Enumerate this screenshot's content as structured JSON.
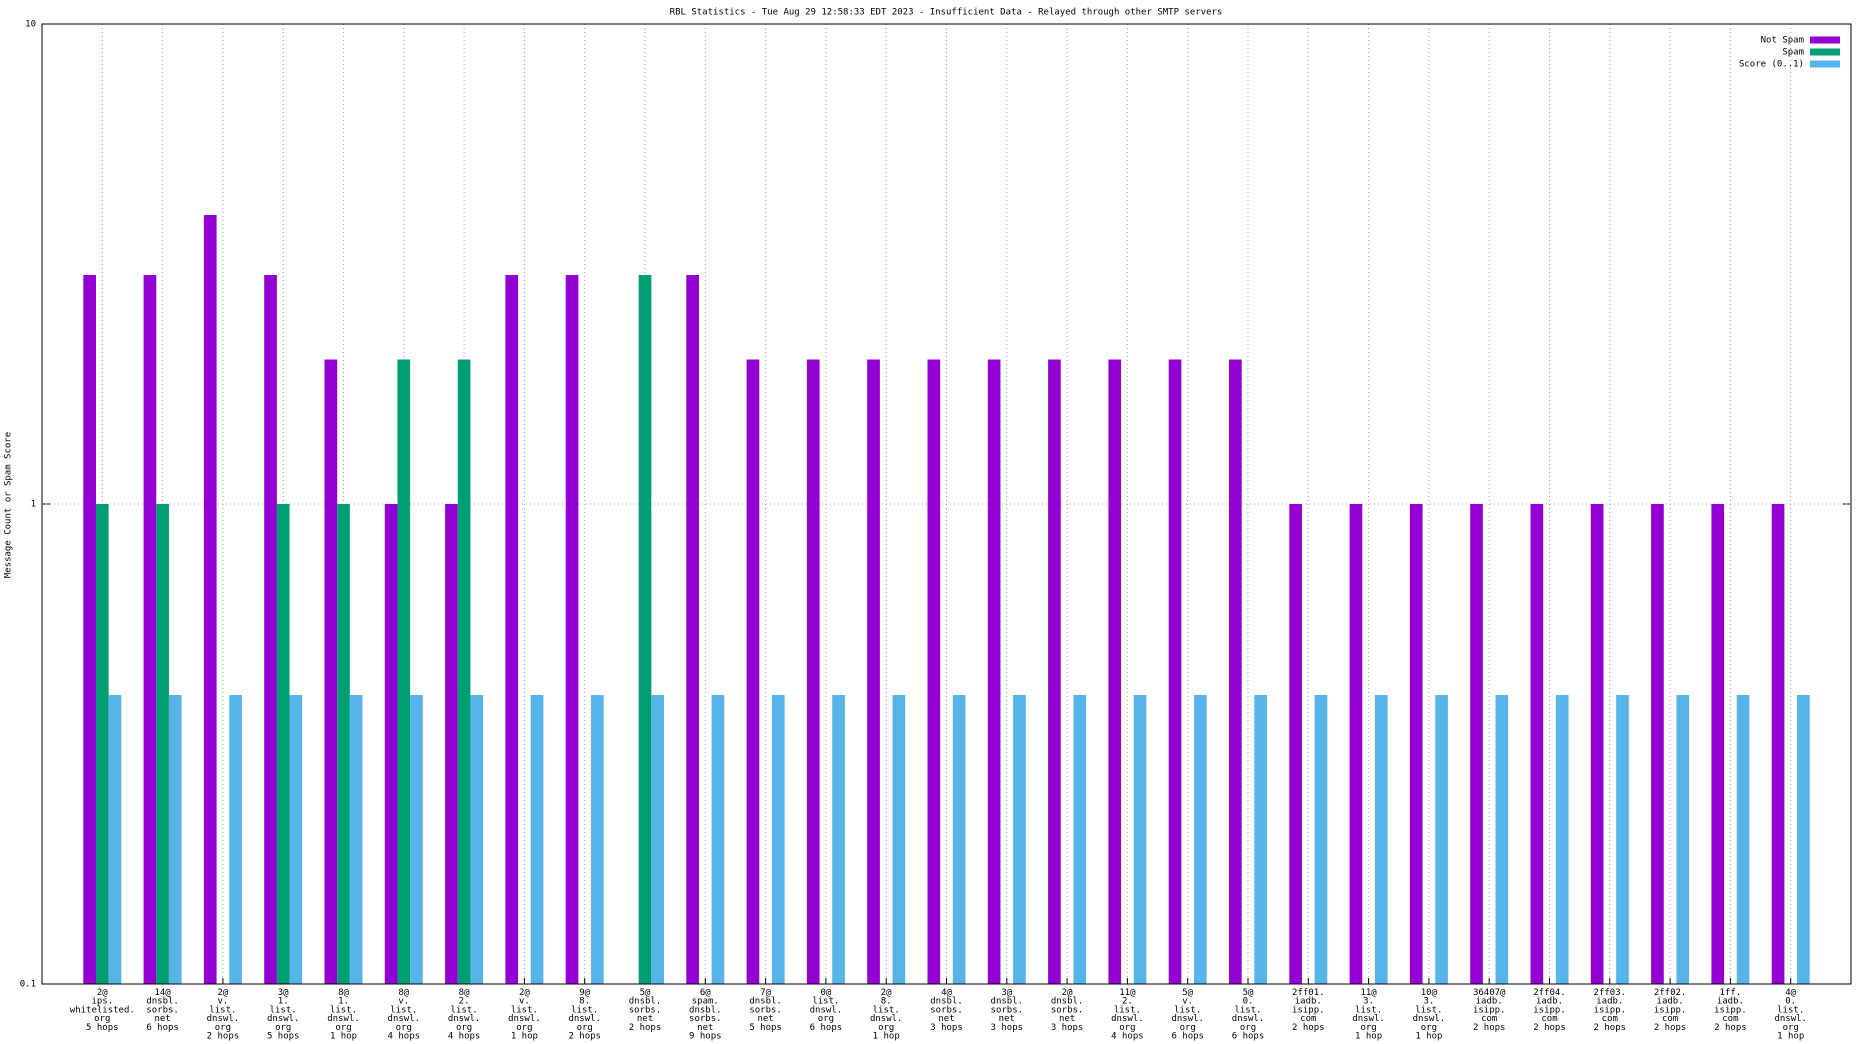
{
  "chart_data": {
    "type": "bar",
    "title": "RBL Statistics - Tue Aug 29 12:58:33 EDT 2023 - Insufficient Data - Relayed through other SMTP servers",
    "y_label": "Message Count or Spam Score",
    "categories": [
      "2@\nips.\nwhitelisted.\norg\n5 hops",
      "14@\ndnsbl.\nsorbs.\nnet\n6 hops",
      "2@\nv.\nlist.\ndnswl.\norg\n2 hops",
      "3@\n1.\nlist.\ndnswl.\norg\n5 hops",
      "8@\n1.\nlist.\ndnswl.\norg\n1 hop",
      "8@\nv.\nlist.\ndnswl.\norg\n4 hops",
      "8@\n2.\nlist.\ndnswl.\norg\n4 hops",
      "2@\nv.\nlist.\ndnswl.\norg\n1 hop",
      "9@\n8.\nlist.\ndnswl.\norg\n2 hops",
      "5@\ndnsbl.\nsorbs.\nnet\n2 hops",
      "6@\nspam.\ndnsbl.\nsorbs.\nnet\n9 hops",
      "7@\ndnsbl.\nsorbs.\nnet\n5 hops",
      "0@\nlist.\ndnswl.\norg\n6 hops",
      "2@\n8.\nlist.\ndnswl.\norg\n1 hop",
      "4@\ndnsbl.\nsorbs.\nnet\n3 hops",
      "3@\ndnsbl.\nsorbs.\nnet\n3 hops",
      "2@\ndnsbl.\nsorbs.\nnet\n3 hops",
      "11@\n2.\nlist.\ndnswl.\norg\n4 hops",
      "5@\nv.\nlist.\ndnswl.\norg\n6 hops",
      "5@\n0.\nlist.\ndnswl.\norg\n6 hops",
      "2ff01.\niadb.\nisipp.\ncom\n2 hops",
      "11@\n3.\nlist.\ndnswl.\norg\n1 hop",
      "10@\n3.\nlist.\ndnswl.\norg\n1 hop",
      "36407@\niadb.\nisipp.\ncom\n2 hops",
      "2ff04.\niadb.\nisipp.\ncom\n2 hops",
      "2ff03.\niadb.\nisipp.\ncom\n2 hops",
      "2ff02.\niadb.\nisipp.\ncom\n2 hops",
      "1ff.\niadb.\nisipp.\ncom\n2 hops",
      "4@\n0.\nlist.\ndnswl.\norg\n1 hop"
    ],
    "series": [
      {
        "name": "Not Spam",
        "color": "#9400d3",
        "values": [
          3,
          3,
          4,
          3,
          2,
          1,
          1,
          3,
          3,
          null,
          3,
          2,
          2,
          2,
          2,
          2,
          2,
          2,
          2,
          2,
          1,
          1,
          1,
          1,
          1,
          1,
          1,
          1,
          1
        ]
      },
      {
        "name": "Spam",
        "color": "#009e73",
        "values": [
          1,
          1,
          null,
          1,
          1,
          2,
          2,
          null,
          null,
          3,
          null,
          null,
          null,
          null,
          null,
          null,
          null,
          null,
          null,
          null,
          null,
          null,
          null,
          null,
          null,
          null,
          null,
          null,
          null
        ]
      },
      {
        "name": "Score (0..1)",
        "color": "#56b4e9",
        "values": [
          0.4,
          0.4,
          0.4,
          0.4,
          0.4,
          0.4,
          0.4,
          0.4,
          0.4,
          0.4,
          0.4,
          0.4,
          0.4,
          0.4,
          0.4,
          0.4,
          0.4,
          0.4,
          0.4,
          0.4,
          0.4,
          0.4,
          0.4,
          0.4,
          0.4,
          0.4,
          0.4,
          0.4,
          0.4
        ]
      }
    ],
    "ylim": [
      0.1,
      10
    ],
    "yticks": [
      0.1,
      1,
      10
    ],
    "log_y": true,
    "grid": true,
    "legend": "top-right"
  }
}
